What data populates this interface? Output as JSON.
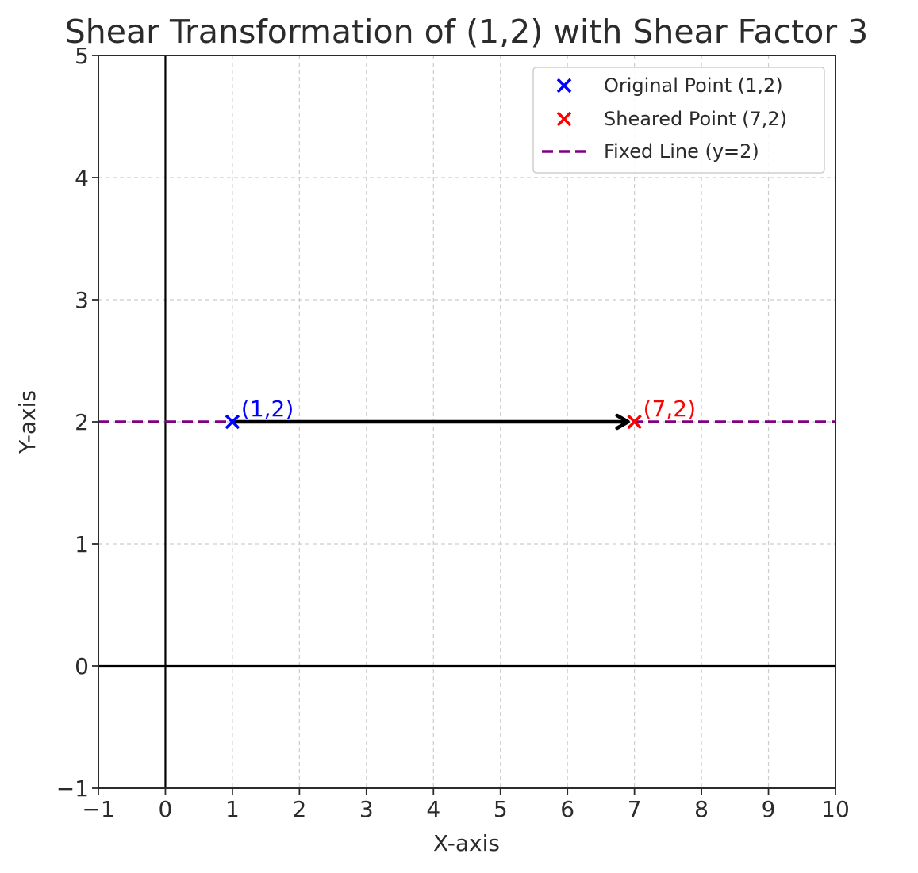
{
  "chart_data": {
    "type": "scatter",
    "title": "Shear Transformation of (1,2) with Shear Factor 3",
    "xlabel": "X-axis",
    "ylabel": "Y-axis",
    "xlim": [
      -1,
      10
    ],
    "ylim": [
      -1,
      5
    ],
    "xticks": [
      -1,
      0,
      1,
      2,
      3,
      4,
      5,
      6,
      7,
      8,
      9,
      10
    ],
    "yticks": [
      -1,
      0,
      1,
      2,
      3,
      4,
      5
    ],
    "xtick_labels": [
      "−1",
      "0",
      "1",
      "2",
      "3",
      "4",
      "5",
      "6",
      "7",
      "8",
      "9",
      "10"
    ],
    "ytick_labels": [
      "−1",
      "0",
      "1",
      "2",
      "3",
      "4",
      "5"
    ],
    "grid": true,
    "legend_position": "top-right",
    "series": [
      {
        "name": "Original Point (1,2)",
        "kind": "point",
        "marker": "x",
        "color": "#0000ff",
        "x": [
          1
        ],
        "y": [
          2
        ],
        "label": "(1,2)"
      },
      {
        "name": "Sheared Point (7,2)",
        "kind": "point",
        "marker": "x",
        "color": "#ff0000",
        "x": [
          7
        ],
        "y": [
          2
        ],
        "label": "(7,2)"
      },
      {
        "name": "Fixed Line (y=2)",
        "kind": "hline",
        "style": "dashed",
        "color": "#800080",
        "y": 2
      }
    ],
    "arrow": {
      "from": [
        1,
        2
      ],
      "to": [
        7,
        2
      ],
      "color": "#000000"
    },
    "reference_lines": {
      "x_axis_y": 0,
      "y_axis_x": 0,
      "color": "#000000"
    }
  }
}
